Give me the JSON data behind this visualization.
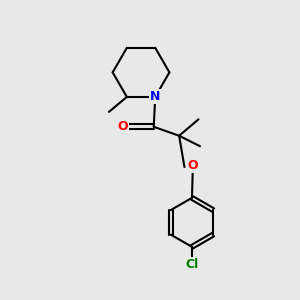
{
  "background_color": "#e8e8e8",
  "bond_color": "#000000",
  "N_color": "#0000ee",
  "O_carbonyl_color": "#ff0000",
  "O_ether_color": "#ff0000",
  "Cl_color": "#008000",
  "line_width": 1.5,
  "font_size_atoms": 9,
  "fig_size": [
    3.0,
    3.0
  ],
  "dpi": 100,
  "xlim": [
    0,
    10
  ],
  "ylim": [
    0,
    10
  ]
}
